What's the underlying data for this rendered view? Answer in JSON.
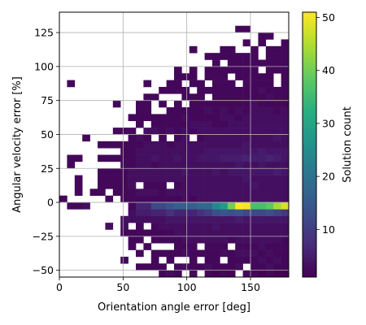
{
  "chart_data": {
    "type": "heatmap",
    "title": "",
    "xlabel": "Orientation angle error [deg]",
    "ylabel": "Angular velocity error [%]",
    "xlim": [
      0,
      180
    ],
    "ylim": [
      -55,
      140
    ],
    "xticks": [
      0,
      50,
      100,
      150
    ],
    "yticks": [
      -50,
      -25,
      0,
      25,
      50,
      75,
      100,
      125
    ],
    "grid": true,
    "colormap": "viridis",
    "colorbar": {
      "label": "Solution count",
      "range": [
        1,
        51
      ],
      "ticks": [
        10,
        20,
        30,
        40,
        50
      ]
    },
    "x_bin_edges": [
      0,
      6,
      12,
      18,
      24,
      30,
      36,
      42,
      48,
      54,
      60,
      66,
      72,
      78,
      84,
      90,
      96,
      102,
      108,
      114,
      120,
      126,
      132,
      138,
      144,
      150,
      156,
      162,
      168,
      174,
      180
    ],
    "y_bin_edges": [
      -55,
      -50,
      -45,
      -40,
      -35,
      -30,
      -25,
      -20,
      -15,
      -10,
      -5,
      0,
      5,
      10,
      15,
      20,
      25,
      30,
      35,
      40,
      45,
      50,
      55,
      60,
      65,
      70,
      75,
      80,
      85,
      90,
      95,
      100,
      105,
      110,
      115,
      120,
      125,
      130,
      135,
      140
    ],
    "counts_rows_bottom_to_top": [
      [
        0,
        0,
        0,
        0,
        0,
        0,
        0,
        0,
        0,
        0,
        0,
        0,
        0,
        2,
        3,
        2,
        0,
        2,
        0,
        2,
        1,
        2,
        1,
        0,
        2,
        2,
        1,
        2,
        1,
        1
      ],
      [
        0,
        0,
        0,
        0,
        0,
        0,
        0,
        0,
        0,
        0,
        2,
        2,
        2,
        2,
        0,
        2,
        3,
        2,
        2,
        3,
        2,
        2,
        2,
        3,
        0,
        2,
        2,
        3,
        2,
        2
      ],
      [
        0,
        0,
        0,
        0,
        0,
        0,
        0,
        0,
        2,
        0,
        0,
        0,
        2,
        0,
        2,
        0,
        0,
        2,
        0,
        2,
        2,
        0,
        2,
        2,
        2,
        2,
        3,
        2,
        3,
        2
      ],
      [
        0,
        0,
        0,
        0,
        0,
        0,
        0,
        0,
        0,
        0,
        2,
        0,
        2,
        2,
        2,
        2,
        3,
        2,
        2,
        2,
        2,
        3,
        2,
        3,
        3,
        3,
        2,
        3,
        2,
        2
      ],
      [
        0,
        0,
        0,
        0,
        0,
        0,
        0,
        0,
        0,
        2,
        0,
        2,
        0,
        0,
        0,
        2,
        2,
        2,
        0,
        2,
        2,
        2,
        0,
        2,
        2,
        2,
        3,
        2,
        2,
        2
      ],
      [
        0,
        0,
        0,
        0,
        0,
        0,
        0,
        0,
        0,
        2,
        2,
        0,
        2,
        2,
        2,
        2,
        3,
        3,
        3,
        3,
        3,
        3,
        2,
        3,
        3,
        3,
        3,
        3,
        3,
        2
      ],
      [
        0,
        0,
        0,
        0,
        0,
        0,
        0,
        0,
        2,
        2,
        2,
        2,
        2,
        2,
        2,
        3,
        3,
        3,
        3,
        3,
        3,
        3,
        3,
        3,
        3,
        3,
        3,
        3,
        3,
        3
      ],
      [
        0,
        0,
        0,
        0,
        0,
        0,
        3,
        0,
        3,
        0,
        2,
        0,
        2,
        3,
        3,
        3,
        3,
        3,
        3,
        3,
        4,
        3,
        3,
        3,
        3,
        3,
        3,
        3,
        3,
        3
      ],
      [
        0,
        0,
        0,
        0,
        0,
        0,
        0,
        0,
        3,
        3,
        3,
        3,
        3,
        3,
        4,
        4,
        4,
        4,
        4,
        4,
        4,
        4,
        4,
        5,
        4,
        4,
        4,
        4,
        4,
        4
      ],
      [
        0,
        0,
        0,
        0,
        0,
        0,
        0,
        0,
        0,
        3,
        5,
        5,
        6,
        6,
        8,
        6,
        6,
        6,
        8,
        10,
        13,
        14,
        13,
        14,
        12,
        12,
        12,
        13,
        11,
        9
      ],
      [
        0,
        2,
        2,
        3,
        0,
        0,
        0,
        0,
        0,
        2,
        6,
        6,
        12,
        12,
        14,
        16,
        16,
        16,
        18,
        18,
        24,
        28,
        40,
        51,
        50,
        36,
        36,
        38,
        44,
        48
      ],
      [
        2,
        0,
        0,
        0,
        0,
        0,
        2,
        0,
        2,
        2,
        2,
        2,
        2,
        2,
        2,
        2,
        3,
        2,
        3,
        3,
        3,
        3,
        3,
        3,
        3,
        3,
        3,
        3,
        3,
        3
      ],
      [
        0,
        0,
        2,
        0,
        2,
        2,
        0,
        2,
        2,
        2,
        3,
        3,
        3,
        2,
        3,
        3,
        3,
        3,
        3,
        3,
        3,
        3,
        3,
        3,
        3,
        3,
        3,
        3,
        3,
        3
      ],
      [
        0,
        0,
        2,
        0,
        0,
        2,
        2,
        2,
        2,
        3,
        0,
        2,
        2,
        2,
        0,
        2,
        3,
        3,
        3,
        3,
        3,
        3,
        3,
        3,
        3,
        4,
        3,
        3,
        3,
        3
      ],
      [
        0,
        0,
        2,
        0,
        0,
        2,
        2,
        2,
        2,
        3,
        3,
        3,
        3,
        3,
        3,
        3,
        3,
        3,
        3,
        3,
        3,
        3,
        3,
        3,
        4,
        3,
        3,
        3,
        3,
        3
      ],
      [
        0,
        0,
        0,
        0,
        0,
        2,
        2,
        2,
        2,
        3,
        3,
        3,
        3,
        3,
        3,
        3,
        4,
        3,
        3,
        3,
        4,
        3,
        4,
        4,
        4,
        4,
        4,
        4,
        5,
        4
      ],
      [
        0,
        2,
        0,
        0,
        0,
        0,
        0,
        0,
        2,
        2,
        3,
        3,
        2,
        3,
        3,
        3,
        3,
        3,
        3,
        3,
        3,
        3,
        3,
        4,
        3,
        3,
        4,
        3,
        3,
        3
      ],
      [
        0,
        2,
        2,
        0,
        0,
        2,
        2,
        2,
        2,
        2,
        3,
        3,
        4,
        3,
        3,
        4,
        3,
        3,
        4,
        4,
        4,
        5,
        5,
        5,
        6,
        5,
        5,
        6,
        5,
        4
      ],
      [
        0,
        0,
        0,
        0,
        0,
        0,
        0,
        0,
        2,
        2,
        3,
        3,
        3,
        3,
        3,
        3,
        3,
        3,
        3,
        4,
        4,
        4,
        4,
        4,
        4,
        4,
        5,
        4,
        4,
        4
      ],
      [
        0,
        0,
        0,
        0,
        0,
        2,
        2,
        2,
        2,
        2,
        2,
        3,
        3,
        3,
        2,
        3,
        3,
        3,
        3,
        3,
        3,
        3,
        3,
        3,
        4,
        3,
        3,
        3,
        3,
        3
      ],
      [
        0,
        0,
        0,
        2,
        0,
        0,
        0,
        0,
        0,
        2,
        3,
        2,
        0,
        2,
        0,
        2,
        3,
        0,
        2,
        3,
        3,
        3,
        3,
        3,
        3,
        3,
        3,
        3,
        4,
        3
      ],
      [
        0,
        0,
        0,
        0,
        0,
        0,
        0,
        2,
        2,
        2,
        0,
        3,
        3,
        2,
        3,
        2,
        3,
        2,
        3,
        3,
        3,
        3,
        3,
        3,
        3,
        3,
        3,
        3,
        3,
        3
      ],
      [
        0,
        0,
        0,
        0,
        0,
        0,
        0,
        0,
        0,
        0,
        2,
        0,
        2,
        2,
        2,
        2,
        2,
        3,
        3,
        3,
        2,
        2,
        3,
        3,
        3,
        3,
        3,
        3,
        3,
        3
      ],
      [
        0,
        0,
        0,
        0,
        0,
        0,
        0,
        0,
        0,
        2,
        2,
        2,
        2,
        2,
        2,
        2,
        3,
        2,
        2,
        2,
        2,
        3,
        3,
        2,
        3,
        3,
        3,
        3,
        3,
        3
      ],
      [
        0,
        0,
        0,
        0,
        0,
        0,
        0,
        0,
        0,
        0,
        2,
        2,
        0,
        0,
        2,
        2,
        2,
        2,
        2,
        3,
        2,
        3,
        2,
        3,
        2,
        3,
        3,
        3,
        2,
        3
      ],
      [
        0,
        0,
        0,
        0,
        0,
        0,
        0,
        2,
        0,
        0,
        2,
        2,
        0,
        2,
        0,
        2,
        0,
        2,
        2,
        2,
        2,
        2,
        2,
        2,
        2,
        3,
        2,
        2,
        2,
        2
      ],
      [
        0,
        0,
        0,
        0,
        0,
        0,
        0,
        0,
        0,
        0,
        0,
        2,
        2,
        0,
        0,
        0,
        2,
        2,
        2,
        0,
        2,
        2,
        2,
        2,
        2,
        2,
        2,
        3,
        2,
        2
      ],
      [
        0,
        0,
        0,
        0,
        0,
        0,
        0,
        0,
        0,
        0,
        0,
        0,
        0,
        2,
        2,
        2,
        2,
        0,
        2,
        2,
        2,
        2,
        2,
        2,
        2,
        2,
        3,
        2,
        2,
        2
      ],
      [
        0,
        2,
        0,
        0,
        0,
        0,
        0,
        0,
        0,
        0,
        0,
        2,
        0,
        0,
        2,
        2,
        0,
        2,
        2,
        0,
        2,
        2,
        2,
        0,
        2,
        2,
        2,
        2,
        0,
        2
      ],
      [
        0,
        0,
        0,
        0,
        0,
        0,
        0,
        0,
        0,
        0,
        0,
        0,
        0,
        0,
        0,
        2,
        2,
        2,
        0,
        2,
        2,
        2,
        0,
        2,
        2,
        2,
        2,
        2,
        0,
        2
      ],
      [
        0,
        0,
        0,
        0,
        0,
        0,
        0,
        0,
        0,
        0,
        0,
        0,
        0,
        0,
        0,
        2,
        0,
        2,
        0,
        2,
        2,
        2,
        2,
        2,
        2,
        2,
        0,
        2,
        2,
        2
      ],
      [
        0,
        0,
        0,
        0,
        0,
        0,
        0,
        0,
        0,
        0,
        0,
        0,
        0,
        0,
        0,
        0,
        0,
        0,
        0,
        0,
        2,
        0,
        2,
        2,
        2,
        2,
        2,
        2,
        2,
        2
      ],
      [
        0,
        0,
        0,
        0,
        0,
        0,
        0,
        0,
        0,
        0,
        0,
        0,
        0,
        0,
        0,
        0,
        0,
        0,
        0,
        2,
        2,
        2,
        2,
        2,
        2,
        2,
        0,
        2,
        2,
        2
      ],
      [
        0,
        0,
        0,
        0,
        0,
        0,
        0,
        0,
        0,
        0,
        0,
        0,
        0,
        0,
        0,
        0,
        0,
        2,
        0,
        0,
        0,
        2,
        2,
        0,
        0,
        2,
        0,
        2,
        2,
        2
      ],
      [
        0,
        0,
        0,
        0,
        0,
        0,
        0,
        0,
        0,
        0,
        0,
        0,
        0,
        0,
        0,
        0,
        0,
        0,
        0,
        0,
        0,
        0,
        0,
        0,
        2,
        0,
        2,
        0,
        0,
        2
      ],
      [
        0,
        0,
        0,
        0,
        0,
        0,
        0,
        0,
        0,
        0,
        0,
        0,
        0,
        0,
        0,
        0,
        0,
        0,
        0,
        0,
        0,
        0,
        0,
        0,
        0,
        0,
        2,
        2,
        0,
        0
      ],
      [
        0,
        0,
        0,
        0,
        0,
        0,
        0,
        0,
        0,
        0,
        0,
        0,
        0,
        0,
        0,
        0,
        0,
        0,
        0,
        0,
        0,
        0,
        0,
        2,
        2,
        0,
        0,
        0,
        0,
        0
      ],
      [
        0,
        0,
        0,
        0,
        0,
        0,
        0,
        0,
        0,
        0,
        0,
        0,
        0,
        0,
        0,
        0,
        0,
        0,
        0,
        0,
        0,
        0,
        0,
        0,
        0,
        0,
        0,
        0,
        0,
        0
      ],
      [
        0,
        0,
        0,
        0,
        0,
        0,
        0,
        0,
        0,
        0,
        0,
        0,
        0,
        0,
        0,
        0,
        0,
        0,
        0,
        0,
        0,
        0,
        0,
        0,
        0,
        0,
        0,
        0,
        0,
        0
      ]
    ]
  }
}
